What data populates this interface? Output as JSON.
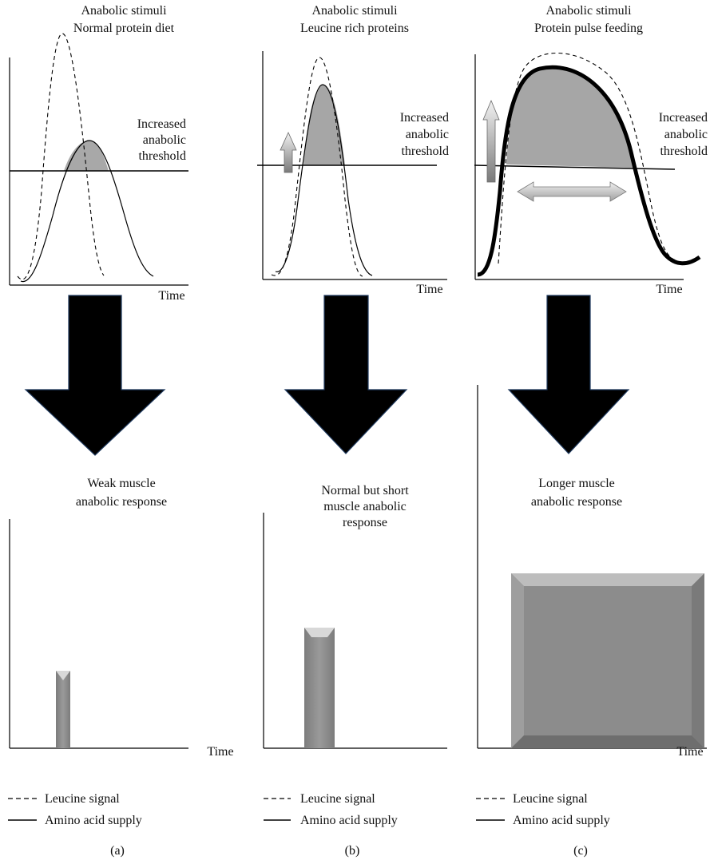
{
  "panels": [
    {
      "id": "a",
      "title_line1": "Anabolic stimuli",
      "title_line2": "Normal protein diet",
      "threshold_lines": [
        "Increased",
        "anabolic",
        "threshold"
      ],
      "time_label_top": "Time",
      "response_lines": [
        "Weak muscle",
        "anabolic response"
      ],
      "time_label_bottom": "Time",
      "legend_dashed": "Leucine signal",
      "legend_solid": "Amino acid supply",
      "caption": "(a)"
    },
    {
      "id": "b",
      "title_line1": "Anabolic stimuli",
      "title_line2": "Leucine rich proteins",
      "threshold_lines": [
        "Increased",
        "anabolic",
        "threshold"
      ],
      "time_label_top": "Time",
      "response_lines": [
        "Normal but short",
        "muscle anabolic",
        "response"
      ],
      "time_label_bottom": "Time",
      "legend_dashed": "Leucine signal",
      "legend_solid": "Amino acid supply",
      "caption": "(b)"
    },
    {
      "id": "c",
      "title_line1": "Anabolic stimuli",
      "title_line2": "Protein pulse feeding",
      "threshold_lines": [
        "Increased",
        "anabolic",
        "threshold"
      ],
      "time_label_top": "Time",
      "response_lines": [
        "Longer muscle",
        "anabolic response"
      ],
      "time_label_bottom": "Time",
      "legend_dashed": "Leucine signal",
      "legend_solid": "Amino acid supply",
      "caption": "(c)"
    }
  ],
  "colors": {
    "area_fill": "#a6a6a6",
    "bar_fill": "#8a8a8a",
    "arrow_fill": "#000000",
    "arrow_stroke": "#1f3a5f",
    "line": "#000000"
  }
}
